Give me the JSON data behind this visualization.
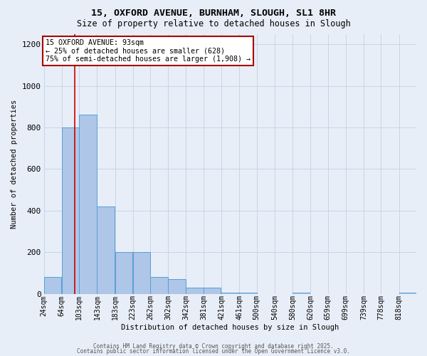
{
  "title_line1": "15, OXFORD AVENUE, BURNHAM, SLOUGH, SL1 8HR",
  "title_line2": "Size of property relative to detached houses in Slough",
  "xlabel": "Distribution of detached houses by size in Slough",
  "ylabel": "Number of detached properties",
  "bin_labels": [
    "24sqm",
    "64sqm",
    "103sqm",
    "143sqm",
    "183sqm",
    "223sqm",
    "262sqm",
    "302sqm",
    "342sqm",
    "381sqm",
    "421sqm",
    "461sqm",
    "500sqm",
    "540sqm",
    "580sqm",
    "620sqm",
    "659sqm",
    "699sqm",
    "739sqm",
    "778sqm",
    "818sqm"
  ],
  "bar_heights": [
    80,
    800,
    860,
    420,
    200,
    200,
    80,
    70,
    30,
    30,
    5,
    5,
    0,
    0,
    5,
    0,
    0,
    0,
    0,
    0,
    5
  ],
  "bar_color": "#aec6e8",
  "bar_edgecolor": "#5a9fd4",
  "grid_color": "#c8d4e8",
  "background_color": "#e8eef8",
  "red_line_x": 93,
  "bin_width": 39,
  "annotation_text": "15 OXFORD AVENUE: 93sqm\n← 25% of detached houses are smaller (628)\n75% of semi-detached houses are larger (1,908) →",
  "annotation_box_color": "#ffffff",
  "annotation_box_edgecolor": "#aa0000",
  "footer_line1": "Contains HM Land Registry data © Crown copyright and database right 2025.",
  "footer_line2": "Contains public sector information licensed under the Open Government Licence v3.0.",
  "ylim": [
    0,
    1250
  ],
  "yticks": [
    0,
    200,
    400,
    600,
    800,
    1000,
    1200
  ]
}
